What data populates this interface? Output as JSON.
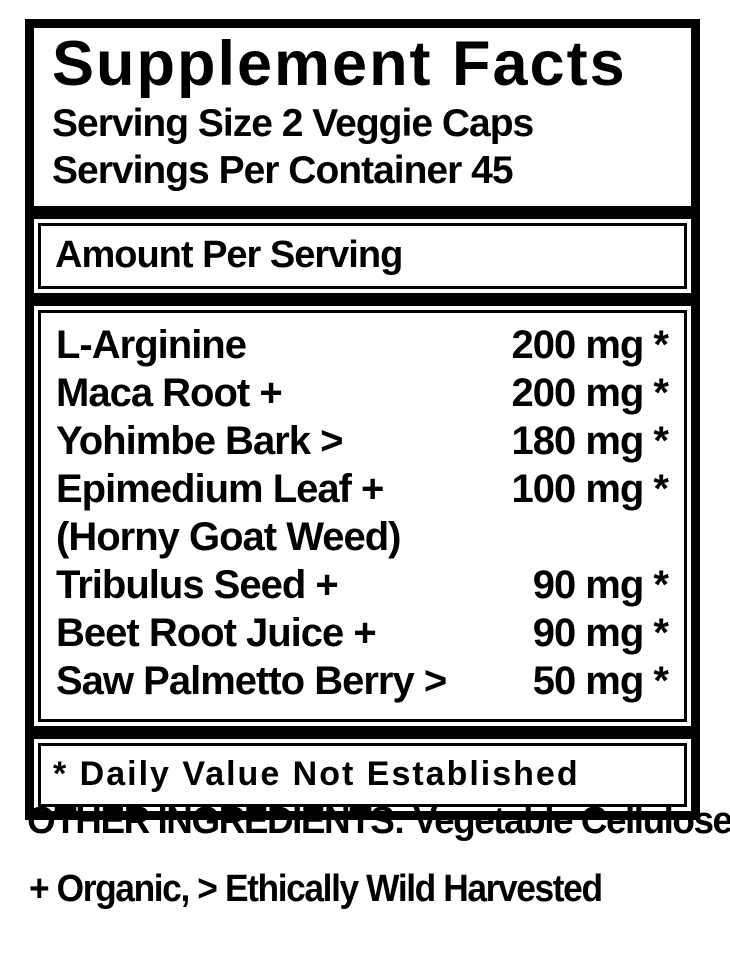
{
  "panel": {
    "title": "Supplement Facts",
    "serving_size": "Serving Size 2 Veggie Caps",
    "servings_per_container": "Servings Per Container 45",
    "amount_header": "Amount Per Serving",
    "rows": [
      {
        "name": "L-Arginine",
        "amount": "200 mg *"
      },
      {
        "name": "Maca Root +",
        "amount": "200 mg *"
      },
      {
        "name": "Yohimbe Bark >",
        "amount": "180 mg *"
      },
      {
        "name": "Epimedium Leaf +",
        "amount": "100 mg *",
        "subname": "(Horny Goat Weed)"
      },
      {
        "name": "Tribulus Seed +",
        "amount": "90 mg *"
      },
      {
        "name": "Beet Root Juice +",
        "amount": "90 mg *"
      },
      {
        "name": "Saw Palmetto Berry >",
        "amount": "50 mg *"
      }
    ],
    "footnote": "* Daily Value Not Established"
  },
  "below_panel": {
    "other_ingredients": "OTHER INGREDIENTS: Vegetable Cellulose",
    "symbols_legend": "+ Organic, > Ethically Wild Harvested"
  },
  "colors": {
    "ink": "#000000",
    "paper": "#ffffff"
  }
}
